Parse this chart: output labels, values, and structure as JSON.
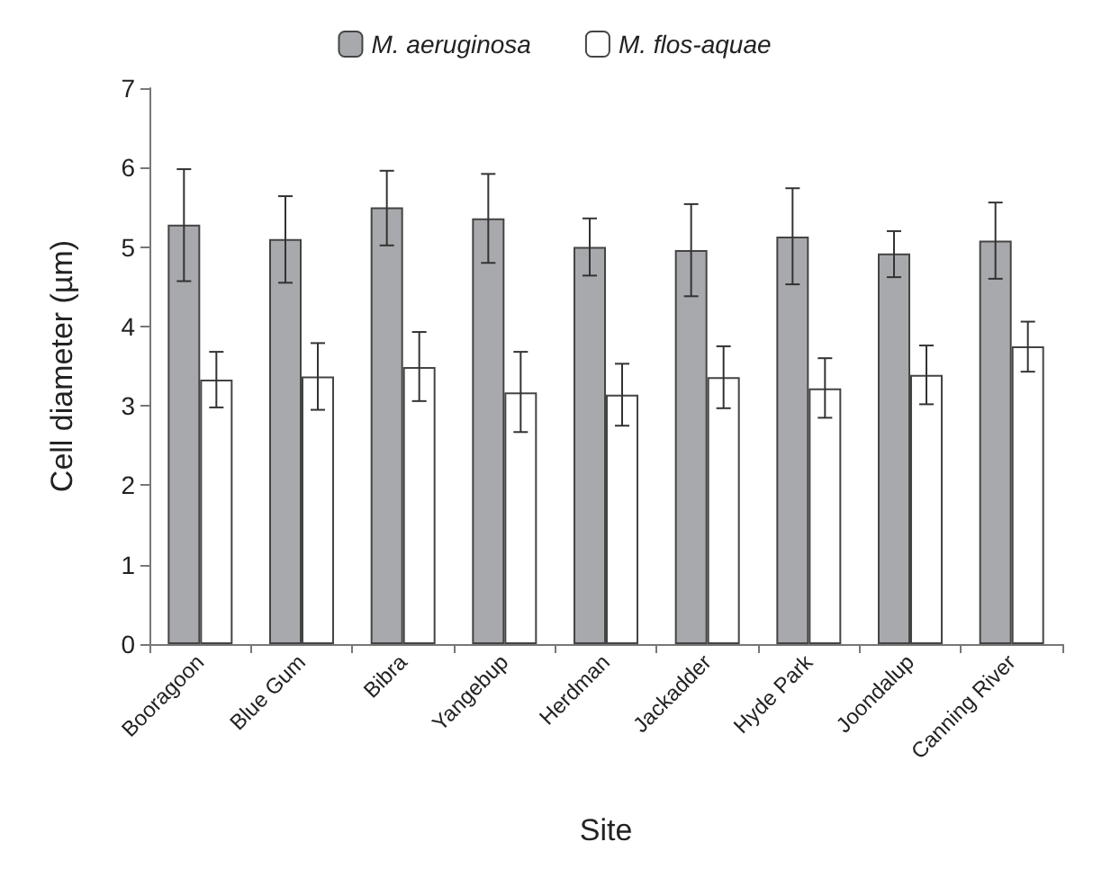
{
  "chart_data": {
    "type": "bar",
    "xlabel": "Site",
    "ylabel": "Cell diameter (µm)",
    "categories": [
      "Booragoon",
      "Blue Gum",
      "Bibra",
      "Yangebup",
      "Herdman",
      "Jackadder",
      "Hyde Park",
      "Joondalup",
      "Canning River"
    ],
    "series": [
      {
        "name": "M. aeruginosa",
        "color": "#a8a9ad",
        "values": [
          5.28,
          5.1,
          5.5,
          5.36,
          5.0,
          4.96,
          5.13,
          4.92,
          5.08
        ],
        "errors": [
          [
            4.57,
            5.98
          ],
          [
            4.55,
            5.64
          ],
          [
            5.02,
            5.96
          ],
          [
            4.8,
            5.92
          ],
          [
            4.64,
            5.36
          ],
          [
            4.38,
            5.54
          ],
          [
            4.53,
            5.74
          ],
          [
            4.62,
            5.2
          ],
          [
            4.6,
            5.56
          ]
        ]
      },
      {
        "name": "M. flos-aquae",
        "color": "#ffffff",
        "values": [
          3.33,
          3.37,
          3.49,
          3.17,
          3.14,
          3.36,
          3.22,
          3.39,
          3.75
        ],
        "errors": [
          [
            2.98,
            3.68
          ],
          [
            2.95,
            3.79
          ],
          [
            3.06,
            3.93
          ],
          [
            2.67,
            3.68
          ],
          [
            2.75,
            3.53
          ],
          [
            2.97,
            3.75
          ],
          [
            2.85,
            3.6
          ],
          [
            3.02,
            3.76
          ],
          [
            3.43,
            4.06
          ]
        ]
      }
    ],
    "ylim": [
      0,
      7
    ],
    "yticks": [
      0,
      1,
      2,
      3,
      4,
      5,
      6,
      7
    ],
    "grid": false,
    "legend": "top"
  }
}
